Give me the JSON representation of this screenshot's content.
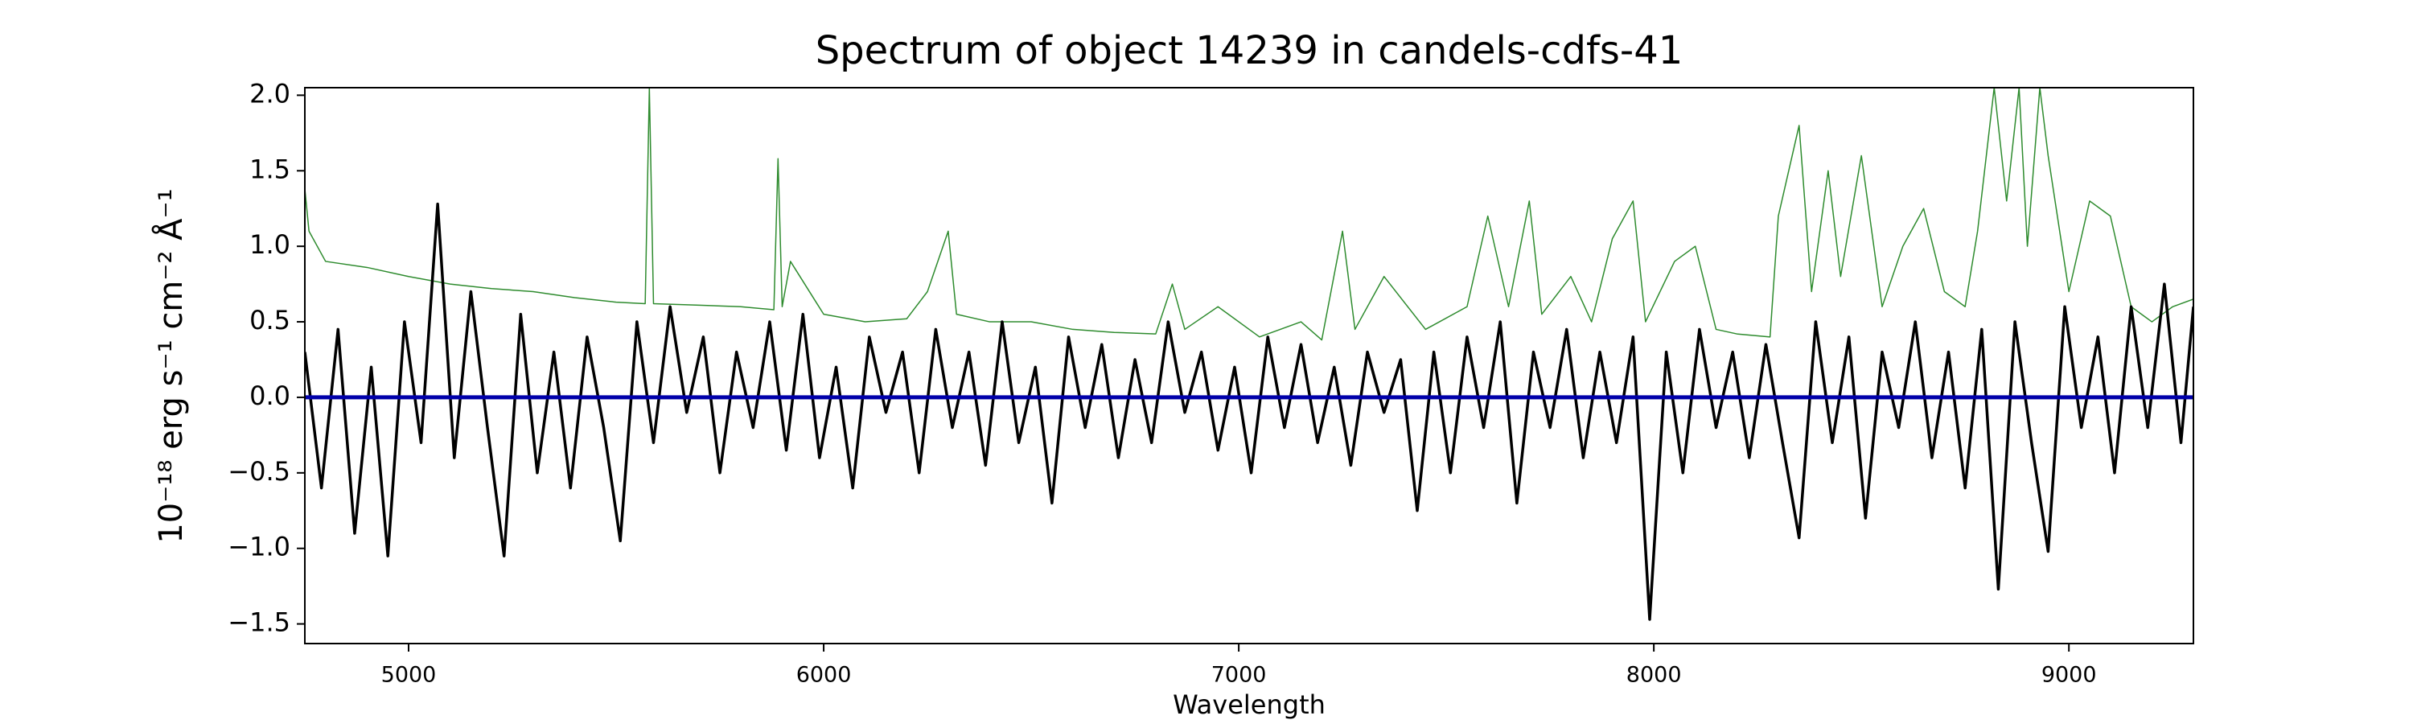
{
  "chart_data": {
    "type": "line",
    "title": "Spectrum of object 14239 in candels-cdfs-41",
    "xlabel": "Wavelength",
    "ylabel": "10⁻¹⁸ erg s⁻¹ cm⁻² Å⁻¹",
    "xlim": [
      4750,
      9300
    ],
    "ylim": [
      -1.63,
      2.05
    ],
    "xticks": [
      5000,
      6000,
      7000,
      8000,
      9000
    ],
    "yticks": [
      {
        "value": -1.5,
        "label": "−1.5"
      },
      {
        "value": -1.0,
        "label": "−1.0"
      },
      {
        "value": -0.5,
        "label": "−0.5"
      },
      {
        "value": 0,
        "label": "0.0"
      },
      0.5,
      {
        "value": 1.0,
        "label": "1.0"
      },
      1.5,
      {
        "value": 2.0,
        "label": "2.0"
      }
    ],
    "grid": false,
    "series": [
      {
        "color": "#2e8b2e",
        "width": 1.5,
        "x": [
          4750,
          4760,
          4800,
          4900,
          5000,
          5100,
          5200,
          5300,
          5400,
          5500,
          5570,
          5580,
          5590,
          5700,
          5800,
          5880,
          5890,
          5900,
          5920,
          6000,
          6100,
          6200,
          6250,
          6300,
          6320,
          6400,
          6500,
          6600,
          6700,
          6800,
          6840,
          6870,
          6950,
          7050,
          7150,
          7200,
          7250,
          7280,
          7350,
          7450,
          7550,
          7600,
          7650,
          7700,
          7730,
          7800,
          7850,
          7900,
          7950,
          7980,
          8050,
          8100,
          8150,
          8200,
          8280,
          8300,
          8350,
          8380,
          8420,
          8450,
          8500,
          8550,
          8600,
          8650,
          8700,
          8750,
          8780,
          8820,
          8850,
          8880,
          8900,
          8930,
          8950,
          9000,
          9050,
          9100,
          9150,
          9200,
          9250,
          9300
        ],
        "values": [
          1.38,
          1.1,
          0.9,
          0.86,
          0.8,
          0.75,
          0.72,
          0.7,
          0.66,
          0.63,
          0.62,
          2.05,
          0.62,
          0.61,
          0.6,
          0.58,
          1.58,
          0.6,
          0.9,
          0.55,
          0.5,
          0.52,
          0.7,
          1.1,
          0.55,
          0.5,
          0.5,
          0.45,
          0.43,
          0.42,
          0.75,
          0.45,
          0.6,
          0.4,
          0.5,
          0.38,
          1.1,
          0.45,
          0.8,
          0.45,
          0.6,
          1.2,
          0.6,
          1.3,
          0.55,
          0.8,
          0.5,
          1.05,
          1.3,
          0.5,
          0.9,
          1.0,
          0.45,
          0.42,
          0.4,
          1.2,
          1.8,
          0.7,
          1.5,
          0.8,
          1.6,
          0.6,
          1.0,
          1.25,
          0.7,
          0.6,
          1.1,
          2.05,
          1.3,
          2.05,
          1.0,
          2.05,
          1.6,
          0.7,
          1.3,
          1.2,
          0.6,
          0.5,
          0.6,
          0.65
        ]
      },
      {
        "color": "#000000",
        "width": 3.5,
        "x": [
          4750,
          4790,
          4830,
          4870,
          4910,
          4950,
          4990,
          5030,
          5070,
          5110,
          5150,
          5190,
          5230,
          5270,
          5310,
          5350,
          5390,
          5430,
          5470,
          5510,
          5550,
          5590,
          5630,
          5670,
          5710,
          5750,
          5790,
          5830,
          5870,
          5910,
          5950,
          5990,
          6030,
          6070,
          6110,
          6150,
          6190,
          6230,
          6270,
          6310,
          6350,
          6390,
          6430,
          6470,
          6510,
          6550,
          6590,
          6630,
          6670,
          6710,
          6750,
          6790,
          6830,
          6870,
          6910,
          6950,
          6990,
          7030,
          7070,
          7110,
          7150,
          7190,
          7230,
          7270,
          7310,
          7350,
          7390,
          7430,
          7470,
          7510,
          7550,
          7590,
          7630,
          7670,
          7710,
          7750,
          7790,
          7830,
          7870,
          7910,
          7950,
          7990,
          8030,
          8070,
          8110,
          8150,
          8190,
          8230,
          8270,
          8310,
          8350,
          8390,
          8430,
          8470,
          8510,
          8550,
          8590,
          8630,
          8670,
          8710,
          8750,
          8790,
          8830,
          8870,
          8910,
          8950,
          8990,
          9030,
          9070,
          9110,
          9150,
          9190,
          9230,
          9270,
          9300
        ],
        "values": [
          0.3,
          -0.6,
          0.45,
          -0.9,
          0.2,
          -1.05,
          0.5,
          -0.3,
          1.28,
          -0.4,
          0.7,
          -0.2,
          -1.05,
          0.55,
          -0.5,
          0.3,
          -0.6,
          0.4,
          -0.2,
          -0.95,
          0.5,
          -0.3,
          0.6,
          -0.1,
          0.4,
          -0.5,
          0.3,
          -0.2,
          0.5,
          -0.35,
          0.55,
          -0.4,
          0.2,
          -0.6,
          0.4,
          -0.1,
          0.3,
          -0.5,
          0.45,
          -0.2,
          0.3,
          -0.45,
          0.5,
          -0.3,
          0.2,
          -0.7,
          0.4,
          -0.2,
          0.35,
          -0.4,
          0.25,
          -0.3,
          0.5,
          -0.1,
          0.3,
          -0.35,
          0.2,
          -0.5,
          0.4,
          -0.2,
          0.35,
          -0.3,
          0.2,
          -0.45,
          0.3,
          -0.1,
          0.25,
          -0.75,
          0.3,
          -0.5,
          0.4,
          -0.2,
          0.5,
          -0.7,
          0.3,
          -0.2,
          0.45,
          -0.4,
          0.3,
          -0.3,
          0.4,
          -1.47,
          0.3,
          -0.5,
          0.45,
          -0.2,
          0.3,
          -0.4,
          0.35,
          -0.3,
          -0.93,
          0.5,
          -0.3,
          0.4,
          -0.8,
          0.3,
          -0.2,
          0.5,
          -0.4,
          0.3,
          -0.6,
          0.45,
          -1.27,
          0.5,
          -0.3,
          -1.02,
          0.6,
          -0.2,
          0.4,
          -0.5,
          0.6,
          -0.2,
          0.75,
          -0.3,
          0.6
        ]
      },
      {
        "color": "#0000aa",
        "width": 5,
        "x": [
          4750,
          9300
        ],
        "values": [
          0,
          0
        ]
      }
    ]
  }
}
